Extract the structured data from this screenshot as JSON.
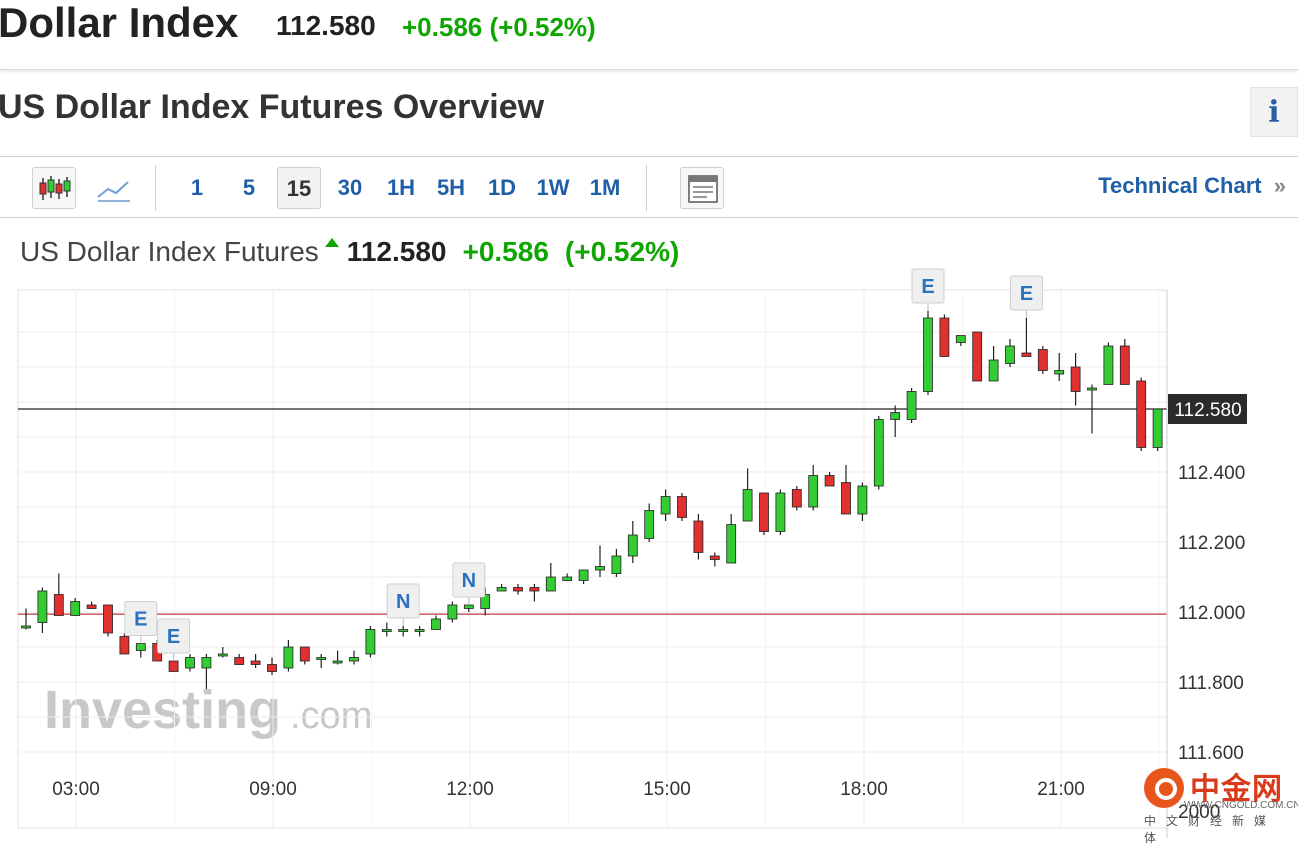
{
  "header": {
    "title": "Dollar Index",
    "price": "112.580",
    "change": "+0.586 (+0.52%)"
  },
  "overview": {
    "title": "US Dollar Index Futures Overview",
    "info_icon": "i"
  },
  "toolbar": {
    "candles_icon": "candlestick-icon",
    "line_icon": "line-chart-icon",
    "timeframes": [
      "1",
      "5",
      "15",
      "30",
      "1H",
      "5H",
      "1D",
      "1W",
      "1M"
    ],
    "active_timeframe": "15",
    "layout_icon": "chart-layout-icon",
    "tech_link": "Technical Chart",
    "tech_link_arrow": "»"
  },
  "chart_header": {
    "name": "US Dollar Index Futures",
    "price": "112.580",
    "change": "+0.586",
    "pct": "(+0.52%)"
  },
  "colors": {
    "up": "#33cc33",
    "down": "#e03030",
    "accent_green": "#0ea600",
    "link_blue": "#1f5fa6",
    "prev_close_line": "#c0383e"
  },
  "chart_data": {
    "type": "candlestick",
    "interval": "15",
    "x_ticks": [
      "03:00",
      "09:00",
      "12:00",
      "15:00",
      "18:00",
      "21:00"
    ],
    "y_ticks": [
      "111.600",
      "111.800",
      "112.000",
      "112.200",
      "112.400"
    ],
    "ylim": [
      111.52,
      112.88
    ],
    "current_price": 112.58,
    "current_label": "112.580",
    "previous_close": 111.994,
    "partial_bottom_label": "2000",
    "watermark": {
      "brand": "Investing",
      "suffix": ".com"
    },
    "candles": [
      {
        "o": 111.96,
        "h": 112.01,
        "l": 111.95,
        "c": 111.96
      },
      {
        "o": 111.97,
        "h": 112.07,
        "l": 111.94,
        "c": 112.06
      },
      {
        "o": 112.05,
        "h": 112.11,
        "l": 111.99,
        "c": 111.99
      },
      {
        "o": 111.99,
        "h": 112.04,
        "l": 111.99,
        "c": 112.03
      },
      {
        "o": 112.02,
        "h": 112.03,
        "l": 112.01,
        "c": 112.01
      },
      {
        "o": 112.02,
        "h": 112.02,
        "l": 111.93,
        "c": 111.94
      },
      {
        "o": 111.93,
        "h": 111.94,
        "l": 111.88,
        "c": 111.88
      },
      {
        "o": 111.89,
        "h": 111.91,
        "l": 111.87,
        "c": 111.91
      },
      {
        "o": 111.91,
        "h": 111.92,
        "l": 111.86,
        "c": 111.86
      },
      {
        "o": 111.86,
        "h": 111.86,
        "l": 111.83,
        "c": 111.83
      },
      {
        "o": 111.84,
        "h": 111.88,
        "l": 111.83,
        "c": 111.87
      },
      {
        "o": 111.84,
        "h": 111.88,
        "l": 111.78,
        "c": 111.87
      },
      {
        "o": 111.88,
        "h": 111.9,
        "l": 111.87,
        "c": 111.88
      },
      {
        "o": 111.87,
        "h": 111.88,
        "l": 111.85,
        "c": 111.85
      },
      {
        "o": 111.86,
        "h": 111.88,
        "l": 111.84,
        "c": 111.85
      },
      {
        "o": 111.85,
        "h": 111.87,
        "l": 111.82,
        "c": 111.83
      },
      {
        "o": 111.84,
        "h": 111.92,
        "l": 111.83,
        "c": 111.9
      },
      {
        "o": 111.9,
        "h": 111.9,
        "l": 111.85,
        "c": 111.86
      },
      {
        "o": 111.87,
        "h": 111.88,
        "l": 111.84,
        "c": 111.87
      },
      {
        "o": 111.86,
        "h": 111.89,
        "l": 111.85,
        "c": 111.86
      },
      {
        "o": 111.86,
        "h": 111.89,
        "l": 111.85,
        "c": 111.87
      },
      {
        "o": 111.88,
        "h": 111.96,
        "l": 111.87,
        "c": 111.95
      },
      {
        "o": 111.95,
        "h": 111.97,
        "l": 111.93,
        "c": 111.95
      },
      {
        "o": 111.95,
        "h": 111.96,
        "l": 111.93,
        "c": 111.95
      },
      {
        "o": 111.95,
        "h": 111.96,
        "l": 111.93,
        "c": 111.95
      },
      {
        "o": 111.95,
        "h": 111.99,
        "l": 111.95,
        "c": 111.98
      },
      {
        "o": 111.98,
        "h": 112.03,
        "l": 111.97,
        "c": 112.02
      },
      {
        "o": 112.01,
        "h": 112.02,
        "l": 112.0,
        "c": 112.02
      },
      {
        "o": 112.01,
        "h": 112.07,
        "l": 111.99,
        "c": 112.05
      },
      {
        "o": 112.06,
        "h": 112.08,
        "l": 112.06,
        "c": 112.07
      },
      {
        "o": 112.07,
        "h": 112.08,
        "l": 112.05,
        "c": 112.06
      },
      {
        "o": 112.07,
        "h": 112.08,
        "l": 112.03,
        "c": 112.06
      },
      {
        "o": 112.06,
        "h": 112.14,
        "l": 112.06,
        "c": 112.1
      },
      {
        "o": 112.09,
        "h": 112.11,
        "l": 112.09,
        "c": 112.1
      },
      {
        "o": 112.09,
        "h": 112.12,
        "l": 112.08,
        "c": 112.12
      },
      {
        "o": 112.12,
        "h": 112.19,
        "l": 112.1,
        "c": 112.13
      },
      {
        "o": 112.11,
        "h": 112.18,
        "l": 112.1,
        "c": 112.16
      },
      {
        "o": 112.16,
        "h": 112.26,
        "l": 112.14,
        "c": 112.22
      },
      {
        "o": 112.21,
        "h": 112.31,
        "l": 112.2,
        "c": 112.29
      },
      {
        "o": 112.28,
        "h": 112.35,
        "l": 112.26,
        "c": 112.33
      },
      {
        "o": 112.33,
        "h": 112.34,
        "l": 112.26,
        "c": 112.27
      },
      {
        "o": 112.26,
        "h": 112.28,
        "l": 112.15,
        "c": 112.17
      },
      {
        "o": 112.16,
        "h": 112.17,
        "l": 112.13,
        "c": 112.15
      },
      {
        "o": 112.14,
        "h": 112.28,
        "l": 112.14,
        "c": 112.25
      },
      {
        "o": 112.26,
        "h": 112.41,
        "l": 112.26,
        "c": 112.35
      },
      {
        "o": 112.34,
        "h": 112.34,
        "l": 112.22,
        "c": 112.23
      },
      {
        "o": 112.23,
        "h": 112.35,
        "l": 112.22,
        "c": 112.34
      },
      {
        "o": 112.35,
        "h": 112.36,
        "l": 112.29,
        "c": 112.3
      },
      {
        "o": 112.3,
        "h": 112.42,
        "l": 112.29,
        "c": 112.39
      },
      {
        "o": 112.39,
        "h": 112.4,
        "l": 112.36,
        "c": 112.36
      },
      {
        "o": 112.37,
        "h": 112.42,
        "l": 112.28,
        "c": 112.28
      },
      {
        "o": 112.28,
        "h": 112.37,
        "l": 112.26,
        "c": 112.36
      },
      {
        "o": 112.36,
        "h": 112.56,
        "l": 112.35,
        "c": 112.55
      },
      {
        "o": 112.55,
        "h": 112.59,
        "l": 112.5,
        "c": 112.57
      },
      {
        "o": 112.55,
        "h": 112.64,
        "l": 112.54,
        "c": 112.63
      },
      {
        "o": 112.63,
        "h": 112.86,
        "l": 112.62,
        "c": 112.84
      },
      {
        "o": 112.84,
        "h": 112.85,
        "l": 112.73,
        "c": 112.73
      },
      {
        "o": 112.77,
        "h": 112.79,
        "l": 112.76,
        "c": 112.79
      },
      {
        "o": 112.8,
        "h": 112.8,
        "l": 112.66,
        "c": 112.66
      },
      {
        "o": 112.66,
        "h": 112.76,
        "l": 112.66,
        "c": 112.72
      },
      {
        "o": 112.71,
        "h": 112.78,
        "l": 112.7,
        "c": 112.76
      },
      {
        "o": 112.74,
        "h": 112.84,
        "l": 112.73,
        "c": 112.73
      },
      {
        "o": 112.75,
        "h": 112.76,
        "l": 112.68,
        "c": 112.69
      },
      {
        "o": 112.68,
        "h": 112.74,
        "l": 112.66,
        "c": 112.69
      },
      {
        "o": 112.7,
        "h": 112.74,
        "l": 112.59,
        "c": 112.63
      },
      {
        "o": 112.64,
        "h": 112.65,
        "l": 112.51,
        "c": 112.64
      },
      {
        "o": 112.65,
        "h": 112.77,
        "l": 112.65,
        "c": 112.76
      },
      {
        "o": 112.76,
        "h": 112.78,
        "l": 112.65,
        "c": 112.65
      },
      {
        "o": 112.66,
        "h": 112.67,
        "l": 112.46,
        "c": 112.47
      },
      {
        "o": 112.47,
        "h": 112.58,
        "l": 112.46,
        "c": 112.58
      }
    ],
    "events": [
      {
        "label": "E",
        "idx": 7
      },
      {
        "label": "E",
        "idx": 9
      },
      {
        "label": "N",
        "idx": 23
      },
      {
        "label": "N",
        "idx": 27
      },
      {
        "label": "E",
        "idx": 55
      },
      {
        "label": "E",
        "idx": 61
      }
    ]
  }
}
